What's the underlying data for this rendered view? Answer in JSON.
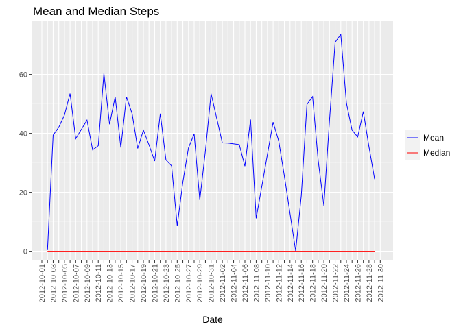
{
  "chart_data": {
    "type": "line",
    "title": "Mean and Median Steps",
    "xlabel": "Date",
    "ylabel": "",
    "ylim": [
      0,
      75
    ],
    "yticks": [
      0,
      20,
      40,
      60
    ],
    "grid": true,
    "legend_position": "right",
    "categories": [
      "2012-10-01",
      "2012-10-02",
      "2012-10-03",
      "2012-10-04",
      "2012-10-05",
      "2012-10-06",
      "2012-10-07",
      "2012-10-08",
      "2012-10-09",
      "2012-10-10",
      "2012-10-11",
      "2012-10-12",
      "2012-10-13",
      "2012-10-14",
      "2012-10-15",
      "2012-10-16",
      "2012-10-17",
      "2012-10-18",
      "2012-10-19",
      "2012-10-20",
      "2012-10-21",
      "2012-10-22",
      "2012-10-23",
      "2012-10-24",
      "2012-10-25",
      "2012-10-26",
      "2012-10-27",
      "2012-10-28",
      "2012-10-29",
      "2012-10-30",
      "2012-10-31",
      "2012-11-01",
      "2012-11-02",
      "2012-11-03",
      "2012-11-04",
      "2012-11-05",
      "2012-11-06",
      "2012-11-07",
      "2012-11-08",
      "2012-11-09",
      "2012-11-10",
      "2012-11-11",
      "2012-11-12",
      "2012-11-13",
      "2012-11-14",
      "2012-11-15",
      "2012-11-16",
      "2012-11-17",
      "2012-11-18",
      "2012-11-19",
      "2012-11-20",
      "2012-11-21",
      "2012-11-22",
      "2012-11-23",
      "2012-11-24",
      "2012-11-25",
      "2012-11-26",
      "2012-11-27",
      "2012-11-28",
      "2012-11-29",
      "2012-11-30"
    ],
    "tick_labels": [
      "2012-10-01",
      "2012-10-03",
      "2012-10-05",
      "2012-10-07",
      "2012-10-09",
      "2012-10-11",
      "2012-10-13",
      "2012-10-15",
      "2012-10-17",
      "2012-10-19",
      "2012-10-21",
      "2012-10-23",
      "2012-10-25",
      "2012-10-27",
      "2012-10-29",
      "2012-10-31",
      "2012-11-02",
      "2012-11-04",
      "2012-11-06",
      "2012-11-08",
      "2012-11-10",
      "2012-11-12",
      "2012-11-14",
      "2012-11-16",
      "2012-11-18",
      "2012-11-20",
      "2012-11-22",
      "2012-11-24",
      "2012-11-26",
      "2012-11-28",
      "2012-11-30"
    ],
    "series": [
      {
        "name": "Mean",
        "color": "#0000ff",
        "points": [
          [
            "2012-10-02",
            0.4
          ],
          [
            "2012-10-03",
            39.4
          ],
          [
            "2012-10-04",
            42.1
          ],
          [
            "2012-10-05",
            46.2
          ],
          [
            "2012-10-06",
            53.5
          ],
          [
            "2012-10-07",
            38.2
          ],
          [
            "2012-10-09",
            44.5
          ],
          [
            "2012-10-10",
            34.4
          ],
          [
            "2012-10-11",
            35.8
          ],
          [
            "2012-10-12",
            60.4
          ],
          [
            "2012-10-13",
            43.1
          ],
          [
            "2012-10-14",
            52.4
          ],
          [
            "2012-10-15",
            35.2
          ],
          [
            "2012-10-16",
            52.4
          ],
          [
            "2012-10-17",
            46.7
          ],
          [
            "2012-10-18",
            34.9
          ],
          [
            "2012-10-19",
            41.1
          ],
          [
            "2012-10-20",
            36.1
          ],
          [
            "2012-10-21",
            30.6
          ],
          [
            "2012-10-22",
            46.7
          ],
          [
            "2012-10-23",
            31.0
          ],
          [
            "2012-10-24",
            29.0
          ],
          [
            "2012-10-25",
            8.7
          ],
          [
            "2012-10-26",
            23.5
          ],
          [
            "2012-10-27",
            35.1
          ],
          [
            "2012-10-28",
            39.8
          ],
          [
            "2012-10-29",
            17.4
          ],
          [
            "2012-10-30",
            34.1
          ],
          [
            "2012-10-31",
            53.5
          ],
          [
            "2012-11-02",
            36.8
          ],
          [
            "2012-11-03",
            36.7
          ],
          [
            "2012-11-05",
            36.2
          ],
          [
            "2012-11-06",
            28.9
          ],
          [
            "2012-11-07",
            44.7
          ],
          [
            "2012-11-08",
            11.2
          ],
          [
            "2012-11-11",
            43.8
          ],
          [
            "2012-11-12",
            37.4
          ],
          [
            "2012-11-13",
            25.5
          ],
          [
            "2012-11-15",
            0.1
          ],
          [
            "2012-11-16",
            18.9
          ],
          [
            "2012-11-17",
            49.8
          ],
          [
            "2012-11-18",
            52.5
          ],
          [
            "2012-11-19",
            30.7
          ],
          [
            "2012-11-20",
            15.5
          ],
          [
            "2012-11-21",
            44.4
          ],
          [
            "2012-11-22",
            70.9
          ],
          [
            "2012-11-23",
            73.6
          ],
          [
            "2012-11-24",
            50.3
          ],
          [
            "2012-11-25",
            41.1
          ],
          [
            "2012-11-26",
            38.8
          ],
          [
            "2012-11-27",
            47.4
          ],
          [
            "2012-11-28",
            35.4
          ],
          [
            "2012-11-29",
            24.5
          ]
        ]
      },
      {
        "name": "Median",
        "color": "#ff0000",
        "points": [
          [
            "2012-10-02",
            0
          ],
          [
            "2012-11-29",
            0
          ]
        ]
      }
    ]
  }
}
